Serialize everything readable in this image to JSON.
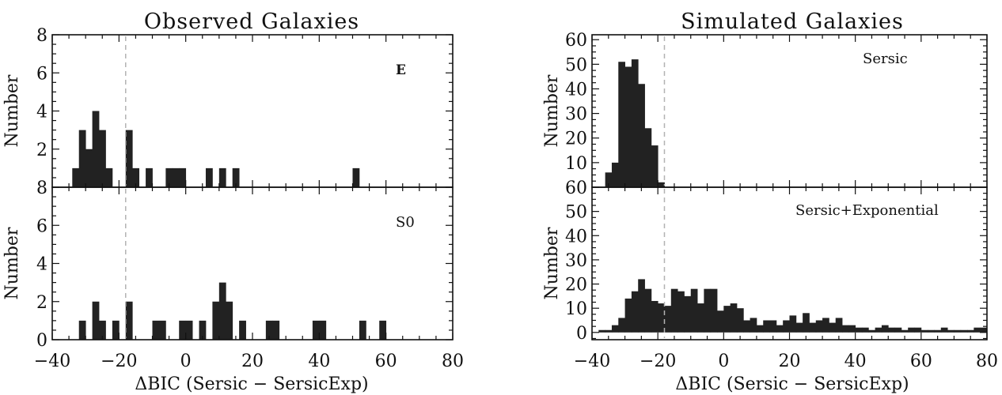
{
  "figure": {
    "title_left": "Observed Galaxies",
    "title_right": "Simulated Galaxies",
    "xlabel": "ΔBIC (Sersic − SersicExp)"
  },
  "chart_data": [
    {
      "type": "bar",
      "group": "Observed Galaxies",
      "annotation": "E",
      "ylabel": "Number",
      "xlim": [
        -40,
        80
      ],
      "ylim": [
        0,
        8
      ],
      "yticks": [
        2,
        4,
        6,
        8
      ],
      "xticks": [
        -40,
        -20,
        0,
        20,
        40,
        60,
        80
      ],
      "bin_width": 2,
      "threshold_x": -18,
      "bins": [
        {
          "x": -33,
          "y": 1
        },
        {
          "x": -31,
          "y": 3
        },
        {
          "x": -29,
          "y": 2
        },
        {
          "x": -27,
          "y": 4
        },
        {
          "x": -25,
          "y": 3
        },
        {
          "x": -23,
          "y": 1
        },
        {
          "x": -17,
          "y": 3
        },
        {
          "x": -15,
          "y": 1
        },
        {
          "x": -11,
          "y": 1
        },
        {
          "x": -5,
          "y": 1
        },
        {
          "x": -3,
          "y": 1
        },
        {
          "x": -1,
          "y": 1
        },
        {
          "x": 7,
          "y": 1
        },
        {
          "x": 11,
          "y": 1
        },
        {
          "x": 15,
          "y": 1
        },
        {
          "x": 51,
          "y": 1
        }
      ]
    },
    {
      "type": "bar",
      "group": "Observed Galaxies",
      "annotation": "S0",
      "ylabel": "Number",
      "xlim": [
        -40,
        80
      ],
      "ylim": [
        0,
        8
      ],
      "yticks": [
        0,
        2,
        4,
        6,
        8
      ],
      "xticks": [
        -40,
        -20,
        0,
        20,
        40,
        60,
        80
      ],
      "bin_width": 2,
      "threshold_x": -18,
      "bins": [
        {
          "x": -31,
          "y": 1
        },
        {
          "x": -27,
          "y": 2
        },
        {
          "x": -25,
          "y": 1
        },
        {
          "x": -21,
          "y": 1
        },
        {
          "x": -17,
          "y": 2
        },
        {
          "x": -9,
          "y": 1
        },
        {
          "x": -7,
          "y": 1
        },
        {
          "x": -1,
          "y": 1
        },
        {
          "x": 1,
          "y": 1
        },
        {
          "x": 5,
          "y": 1
        },
        {
          "x": 9,
          "y": 2
        },
        {
          "x": 11,
          "y": 3
        },
        {
          "x": 13,
          "y": 2
        },
        {
          "x": 17,
          "y": 1
        },
        {
          "x": 25,
          "y": 1
        },
        {
          "x": 27,
          "y": 1
        },
        {
          "x": 39,
          "y": 1
        },
        {
          "x": 41,
          "y": 1
        },
        {
          "x": 53,
          "y": 1
        },
        {
          "x": 59,
          "y": 1
        }
      ]
    },
    {
      "type": "bar",
      "group": "Simulated Galaxies",
      "annotation": "Sersic",
      "ylabel": "Number",
      "xlim": [
        -40,
        80
      ],
      "ylim": [
        0,
        62
      ],
      "yticks": [
        10,
        20,
        30,
        40,
        50,
        60
      ],
      "xticks": [
        -40,
        -20,
        0,
        20,
        40,
        60,
        80
      ],
      "bin_width": 2,
      "threshold_x": -18,
      "bins": [
        {
          "x": -35,
          "y": 6
        },
        {
          "x": -33,
          "y": 10
        },
        {
          "x": -31,
          "y": 51
        },
        {
          "x": -29,
          "y": 49
        },
        {
          "x": -27,
          "y": 52
        },
        {
          "x": -25,
          "y": 42
        },
        {
          "x": -23,
          "y": 24
        },
        {
          "x": -21,
          "y": 17
        },
        {
          "x": -19,
          "y": 2
        }
      ]
    },
    {
      "type": "bar",
      "group": "Simulated Galaxies",
      "annotation": "Sersic+Exponential",
      "ylabel": "Number",
      "xlim": [
        -40,
        80
      ],
      "ylim": [
        -3,
        60
      ],
      "yticks": [
        0,
        10,
        20,
        30,
        40,
        50,
        60
      ],
      "xticks": [
        -40,
        -20,
        0,
        20,
        40,
        60,
        80
      ],
      "bin_width": 2,
      "threshold_x": -18,
      "bins": [
        {
          "x": -37,
          "y": 1
        },
        {
          "x": -35,
          "y": 1
        },
        {
          "x": -33,
          "y": 3
        },
        {
          "x": -31,
          "y": 6
        },
        {
          "x": -29,
          "y": 14
        },
        {
          "x": -27,
          "y": 17
        },
        {
          "x": -25,
          "y": 22
        },
        {
          "x": -23,
          "y": 18
        },
        {
          "x": -21,
          "y": 13
        },
        {
          "x": -19,
          "y": 12
        },
        {
          "x": -17,
          "y": 11
        },
        {
          "x": -15,
          "y": 18
        },
        {
          "x": -13,
          "y": 17
        },
        {
          "x": -11,
          "y": 15
        },
        {
          "x": -9,
          "y": 18
        },
        {
          "x": -7,
          "y": 12
        },
        {
          "x": -5,
          "y": 18
        },
        {
          "x": -3,
          "y": 18
        },
        {
          "x": -1,
          "y": 9
        },
        {
          "x": 1,
          "y": 11
        },
        {
          "x": 3,
          "y": 12
        },
        {
          "x": 5,
          "y": 10
        },
        {
          "x": 7,
          "y": 5
        },
        {
          "x": 9,
          "y": 6
        },
        {
          "x": 11,
          "y": 3
        },
        {
          "x": 13,
          "y": 5
        },
        {
          "x": 15,
          "y": 5
        },
        {
          "x": 17,
          "y": 3
        },
        {
          "x": 19,
          "y": 5
        },
        {
          "x": 21,
          "y": 7
        },
        {
          "x": 23,
          "y": 4
        },
        {
          "x": 25,
          "y": 8
        },
        {
          "x": 27,
          "y": 4
        },
        {
          "x": 29,
          "y": 5
        },
        {
          "x": 31,
          "y": 6
        },
        {
          "x": 33,
          "y": 4
        },
        {
          "x": 35,
          "y": 6
        },
        {
          "x": 37,
          "y": 3
        },
        {
          "x": 39,
          "y": 3
        },
        {
          "x": 41,
          "y": 2
        },
        {
          "x": 43,
          "y": 2
        },
        {
          "x": 45,
          "y": 1
        },
        {
          "x": 47,
          "y": 2
        },
        {
          "x": 49,
          "y": 3
        },
        {
          "x": 51,
          "y": 2
        },
        {
          "x": 53,
          "y": 2
        },
        {
          "x": 55,
          "y": 1
        },
        {
          "x": 57,
          "y": 2
        },
        {
          "x": 59,
          "y": 2
        },
        {
          "x": 61,
          "y": 1
        },
        {
          "x": 63,
          "y": 1
        },
        {
          "x": 65,
          "y": 1
        },
        {
          "x": 67,
          "y": 2
        },
        {
          "x": 69,
          "y": 1
        },
        {
          "x": 71,
          "y": 1
        },
        {
          "x": 73,
          "y": 1
        },
        {
          "x": 75,
          "y": 1
        },
        {
          "x": 77,
          "y": 2
        },
        {
          "x": 79,
          "y": 2
        }
      ]
    }
  ]
}
